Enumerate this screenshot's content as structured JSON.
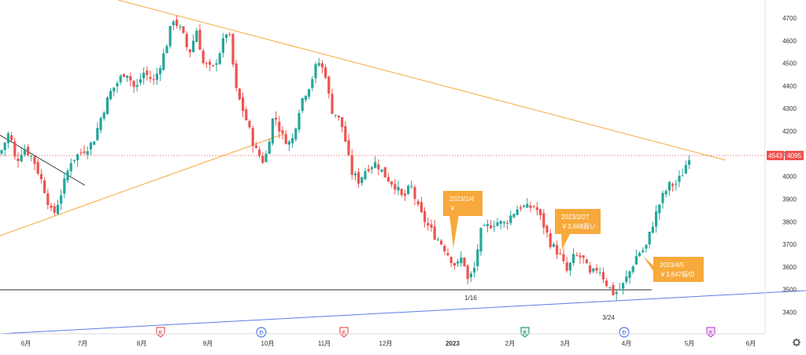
{
  "chart_data": {
    "type": "candlestick",
    "y_axis": {
      "ylim": [
        3370,
        4790
      ],
      "ticks": [
        3400,
        3500,
        3600,
        3700,
        3800,
        3900,
        4000,
        4100,
        4200,
        4300,
        4400,
        4500,
        4600,
        4700
      ]
    },
    "x_axis": {
      "labels": [
        "6月",
        "7月",
        "8月",
        "9月",
        "10月",
        "11月",
        "12月",
        "2023",
        "2月",
        "3月",
        "4月",
        "5月",
        "6月"
      ],
      "label_bold_index": 7
    },
    "price_badge": {
      "label": "4543",
      "value": "4095",
      "level": 4095
    },
    "colors": {
      "up": "#26a69a",
      "down": "#ef5350",
      "trend": "#f7a83a",
      "support": "#2b2b2b",
      "blue_line": "#5b7de8",
      "callout": "#f7a93b",
      "badge": "#ef5350"
    },
    "candles_monthly_anchors": [
      {
        "t": "6月",
        "close": 4110
      },
      {
        "t": "7月",
        "close": 3950
      },
      {
        "t": "8月",
        "close": 4480
      },
      {
        "t": "9月",
        "close": 4520
      },
      {
        "t": "10月",
        "close": 4080
      },
      {
        "t": "11月",
        "close": 4430
      },
      {
        "t": "12月",
        "close": 3950
      },
      {
        "t": "2023",
        "close": 3620
      },
      {
        "t": "2月",
        "close": 3800
      },
      {
        "t": "3月",
        "close": 3620
      },
      {
        "t": "4月",
        "close": 3650
      },
      {
        "t": "5月",
        "close": 4095
      }
    ],
    "annotations": [
      {
        "id": "jan4",
        "lines": [
          "2023/1/4",
          "￥"
        ]
      },
      {
        "id": "feb27",
        "lines": [
          "2023/2/27",
          "￥3,668買い"
        ]
      },
      {
        "id": "apr5",
        "lines": [
          "2023/4/5",
          "￥3,647損切"
        ]
      }
    ],
    "low_labels": {
      "jan16": "1/16",
      "mar24": "3/24"
    },
    "event_markers": [
      {
        "letter": "E",
        "kind": "earnings-red"
      },
      {
        "letter": "D",
        "kind": "dividend-blue"
      },
      {
        "letter": "E",
        "kind": "earnings-red"
      },
      {
        "letter": "E",
        "kind": "earnings-green"
      },
      {
        "letter": "D",
        "kind": "dividend-blue"
      },
      {
        "letter": "E",
        "kind": "earnings-purple"
      }
    ],
    "settings_icon": "gear-icon"
  }
}
